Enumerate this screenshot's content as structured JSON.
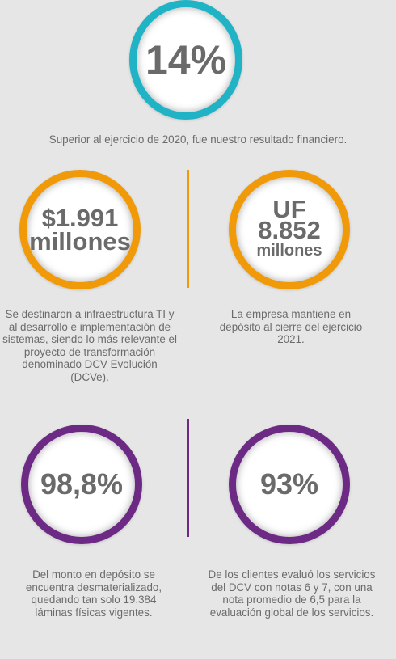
{
  "colors": {
    "teal": "#1fb3c5",
    "orange": "#f09a0a",
    "purple": "#6c2a85",
    "background": "#e6e6e6"
  },
  "top": {
    "value": "14%",
    "text": "Superior al ejercicio de 2020, fue nuestro resultado financiero."
  },
  "row1": {
    "left": {
      "value": "$1.991",
      "unit": "millones",
      "text": "Se destinaron a infraestructura TI y al desarrollo e implementación de sistemas, siendo lo más relevante el proyecto de transformación denominado DCV Evolución (DCVe)."
    },
    "right": {
      "prefix": "UF",
      "value": "8.852",
      "unit": "millones",
      "text": "La empresa mantiene en depósito al cierre del ejercicio 2021."
    }
  },
  "row2": {
    "left": {
      "value": "98,8%",
      "text": "Del monto en depósito se encuentra desmaterializado, quedando tan solo 19.384 láminas físicas vigentes."
    },
    "right": {
      "value": "93%",
      "text": "De los clientes evaluó los servicios del DCV con notas 6 y 7, con una nota promedio de 6,5 para la evaluación global de los servicios."
    }
  }
}
